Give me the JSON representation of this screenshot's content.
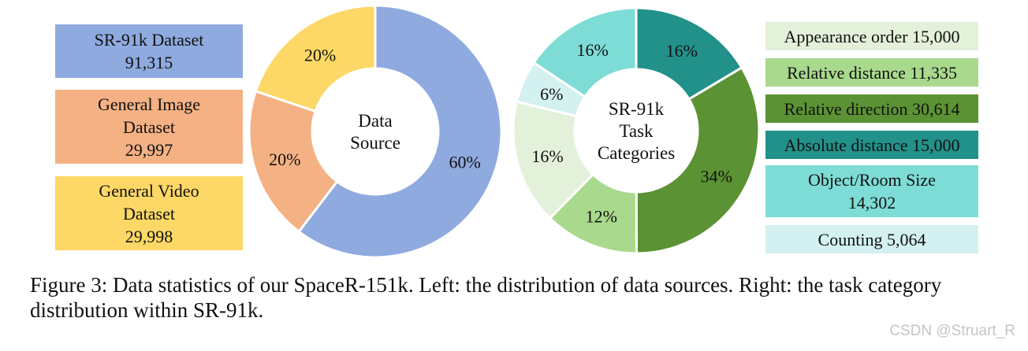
{
  "chart_data": [
    {
      "type": "pie",
      "center_label": "Data\nSource",
      "slices": [
        {
          "label": "SR-91k Dataset",
          "value": 91315,
          "percent_label": "60%",
          "color": "#8eaadf"
        },
        {
          "label": "General Image Dataset",
          "value": 29997,
          "percent_label": "20%",
          "color": "#f4b183"
        },
        {
          "label": "General Video Dataset",
          "value": 29998,
          "percent_label": "20%",
          "color": "#fdd866"
        }
      ],
      "legend": [
        {
          "line1": "SR-91k Dataset",
          "line2": "",
          "value": "91,315",
          "color": "#8eaadf"
        },
        {
          "line1": "General Image",
          "line2": "Dataset",
          "value": "29,997",
          "color": "#f4b183"
        },
        {
          "line1": "General Video",
          "line2": "Dataset",
          "value": "29,998",
          "color": "#fdd866"
        }
      ]
    },
    {
      "type": "pie",
      "center_label": "SR-91k\nTask\nCategories",
      "slices": [
        {
          "label": "Absolute distance",
          "value": 15000,
          "percent_label": "16%",
          "color": "#22918a"
        },
        {
          "label": "Relative direction",
          "value": 30614,
          "percent_label": "34%",
          "color": "#5b9234"
        },
        {
          "label": "Relative distance",
          "value": 11335,
          "percent_label": "12%",
          "color": "#a9d98d"
        },
        {
          "label": "Appearance order",
          "value": 15000,
          "percent_label": "16%",
          "color": "#e3f1da"
        },
        {
          "label": "Counting",
          "value": 5064,
          "percent_label": "6%",
          "color": "#d3f1f0"
        },
        {
          "label": "Object/Room Size",
          "value": 14302,
          "percent_label": "16%",
          "color": "#7ddcd5"
        }
      ],
      "legend": [
        {
          "text": "Appearance order 15,000",
          "color": "#e3f1da",
          "text_color": "#111111"
        },
        {
          "text": "Relative distance 11,335",
          "color": "#a9d98d",
          "text_color": "#111111"
        },
        {
          "text": "Relative direction 30,614",
          "color": "#5b9234",
          "text_color": "#111111"
        },
        {
          "text": "Absolute distance 15,000",
          "color": "#22918a",
          "text_color": "#111111"
        },
        {
          "text": "Object/Room Size\n14,302",
          "color": "#7ddcd5",
          "text_color": "#111111"
        },
        {
          "text": "Counting 5,064",
          "color": "#d3f1f0",
          "text_color": "#111111"
        }
      ]
    }
  ],
  "caption": "Figure 3: Data statistics of our SpaceR-151k. Left: the distribution of data sources. Right: the task category distribution within SR-91k.",
  "watermark": "CSDN @Struart_R"
}
